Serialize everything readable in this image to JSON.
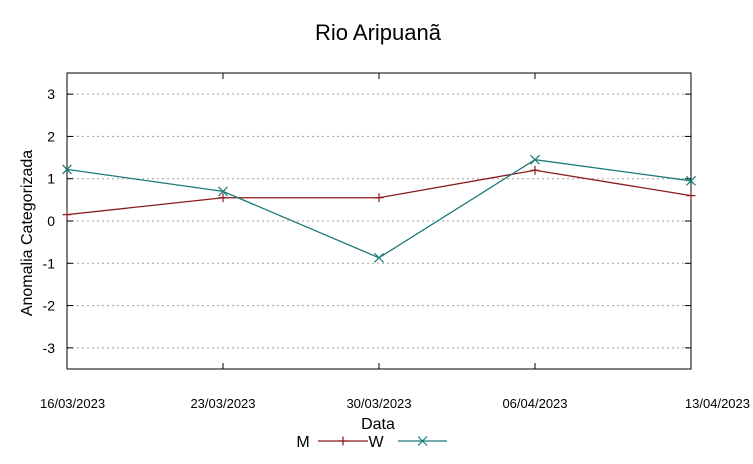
{
  "chart_data": {
    "type": "line",
    "title": "Rio Aripuanã",
    "xlabel": "Data",
    "ylabel": "Anomalia Categorizada",
    "categories": [
      "16/03/2023",
      "23/03/2023",
      "30/03/2023",
      "06/04/2023",
      "13/04/2023"
    ],
    "ylim": [
      -3.5,
      3.5
    ],
    "yticks": [
      -3,
      -2,
      -1,
      0,
      1,
      2,
      3
    ],
    "grid": true,
    "legend_position": "bottom",
    "series": [
      {
        "name": "M",
        "values": [
          0.15,
          0.55,
          0.55,
          1.2,
          0.6
        ],
        "color": "#8b1a1a",
        "marker": "plus"
      },
      {
        "name": "W",
        "values": [
          1.22,
          0.7,
          -0.87,
          1.45,
          0.95
        ],
        "color": "#1a7a7a",
        "marker": "cross"
      }
    ]
  }
}
